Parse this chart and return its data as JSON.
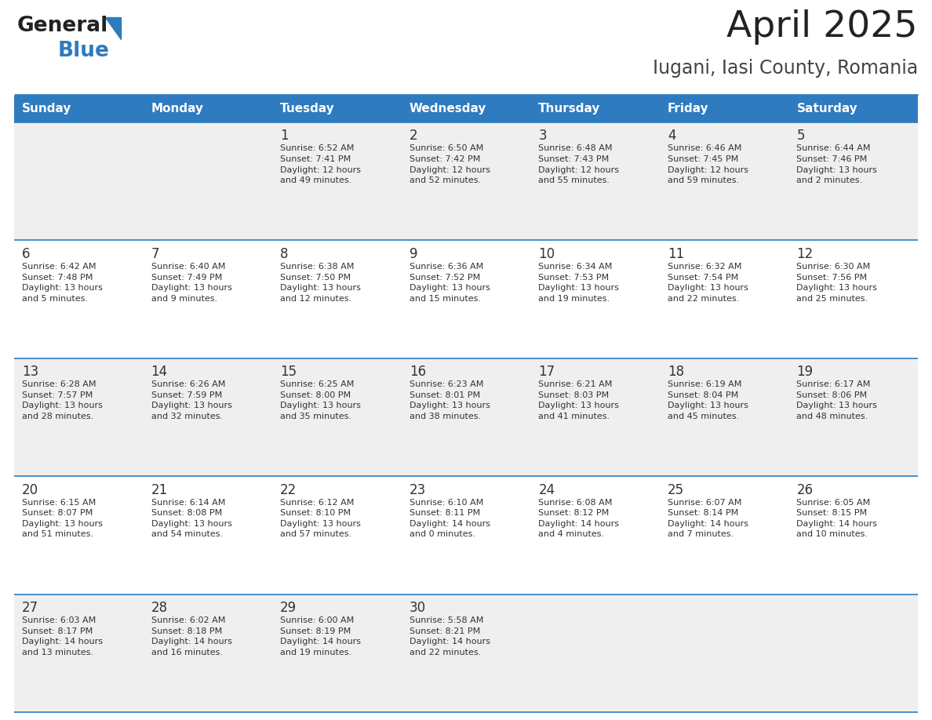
{
  "title": "April 2025",
  "subtitle": "Iugani, Iasi County, Romania",
  "days_of_week": [
    "Sunday",
    "Monday",
    "Tuesday",
    "Wednesday",
    "Thursday",
    "Friday",
    "Saturday"
  ],
  "header_bg": "#2E7BBF",
  "header_text_color": "#FFFFFF",
  "cell_bg_odd": "#EFEFEF",
  "cell_bg_even": "#FFFFFF",
  "border_color": "#2E7BBF",
  "text_color": "#333333",
  "title_color": "#222222",
  "subtitle_color": "#444444",
  "logo_text_color": "#222222",
  "logo_blue_color": "#2E7BBF",
  "weeks": [
    [
      {
        "day": "",
        "info": ""
      },
      {
        "day": "",
        "info": ""
      },
      {
        "day": "1",
        "info": "Sunrise: 6:52 AM\nSunset: 7:41 PM\nDaylight: 12 hours\nand 49 minutes."
      },
      {
        "day": "2",
        "info": "Sunrise: 6:50 AM\nSunset: 7:42 PM\nDaylight: 12 hours\nand 52 minutes."
      },
      {
        "day": "3",
        "info": "Sunrise: 6:48 AM\nSunset: 7:43 PM\nDaylight: 12 hours\nand 55 minutes."
      },
      {
        "day": "4",
        "info": "Sunrise: 6:46 AM\nSunset: 7:45 PM\nDaylight: 12 hours\nand 59 minutes."
      },
      {
        "day": "5",
        "info": "Sunrise: 6:44 AM\nSunset: 7:46 PM\nDaylight: 13 hours\nand 2 minutes."
      }
    ],
    [
      {
        "day": "6",
        "info": "Sunrise: 6:42 AM\nSunset: 7:48 PM\nDaylight: 13 hours\nand 5 minutes."
      },
      {
        "day": "7",
        "info": "Sunrise: 6:40 AM\nSunset: 7:49 PM\nDaylight: 13 hours\nand 9 minutes."
      },
      {
        "day": "8",
        "info": "Sunrise: 6:38 AM\nSunset: 7:50 PM\nDaylight: 13 hours\nand 12 minutes."
      },
      {
        "day": "9",
        "info": "Sunrise: 6:36 AM\nSunset: 7:52 PM\nDaylight: 13 hours\nand 15 minutes."
      },
      {
        "day": "10",
        "info": "Sunrise: 6:34 AM\nSunset: 7:53 PM\nDaylight: 13 hours\nand 19 minutes."
      },
      {
        "day": "11",
        "info": "Sunrise: 6:32 AM\nSunset: 7:54 PM\nDaylight: 13 hours\nand 22 minutes."
      },
      {
        "day": "12",
        "info": "Sunrise: 6:30 AM\nSunset: 7:56 PM\nDaylight: 13 hours\nand 25 minutes."
      }
    ],
    [
      {
        "day": "13",
        "info": "Sunrise: 6:28 AM\nSunset: 7:57 PM\nDaylight: 13 hours\nand 28 minutes."
      },
      {
        "day": "14",
        "info": "Sunrise: 6:26 AM\nSunset: 7:59 PM\nDaylight: 13 hours\nand 32 minutes."
      },
      {
        "day": "15",
        "info": "Sunrise: 6:25 AM\nSunset: 8:00 PM\nDaylight: 13 hours\nand 35 minutes."
      },
      {
        "day": "16",
        "info": "Sunrise: 6:23 AM\nSunset: 8:01 PM\nDaylight: 13 hours\nand 38 minutes."
      },
      {
        "day": "17",
        "info": "Sunrise: 6:21 AM\nSunset: 8:03 PM\nDaylight: 13 hours\nand 41 minutes."
      },
      {
        "day": "18",
        "info": "Sunrise: 6:19 AM\nSunset: 8:04 PM\nDaylight: 13 hours\nand 45 minutes."
      },
      {
        "day": "19",
        "info": "Sunrise: 6:17 AM\nSunset: 8:06 PM\nDaylight: 13 hours\nand 48 minutes."
      }
    ],
    [
      {
        "day": "20",
        "info": "Sunrise: 6:15 AM\nSunset: 8:07 PM\nDaylight: 13 hours\nand 51 minutes."
      },
      {
        "day": "21",
        "info": "Sunrise: 6:14 AM\nSunset: 8:08 PM\nDaylight: 13 hours\nand 54 minutes."
      },
      {
        "day": "22",
        "info": "Sunrise: 6:12 AM\nSunset: 8:10 PM\nDaylight: 13 hours\nand 57 minutes."
      },
      {
        "day": "23",
        "info": "Sunrise: 6:10 AM\nSunset: 8:11 PM\nDaylight: 14 hours\nand 0 minutes."
      },
      {
        "day": "24",
        "info": "Sunrise: 6:08 AM\nSunset: 8:12 PM\nDaylight: 14 hours\nand 4 minutes."
      },
      {
        "day": "25",
        "info": "Sunrise: 6:07 AM\nSunset: 8:14 PM\nDaylight: 14 hours\nand 7 minutes."
      },
      {
        "day": "26",
        "info": "Sunrise: 6:05 AM\nSunset: 8:15 PM\nDaylight: 14 hours\nand 10 minutes."
      }
    ],
    [
      {
        "day": "27",
        "info": "Sunrise: 6:03 AM\nSunset: 8:17 PM\nDaylight: 14 hours\nand 13 minutes."
      },
      {
        "day": "28",
        "info": "Sunrise: 6:02 AM\nSunset: 8:18 PM\nDaylight: 14 hours\nand 16 minutes."
      },
      {
        "day": "29",
        "info": "Sunrise: 6:00 AM\nSunset: 8:19 PM\nDaylight: 14 hours\nand 19 minutes."
      },
      {
        "day": "30",
        "info": "Sunrise: 5:58 AM\nSunset: 8:21 PM\nDaylight: 14 hours\nand 22 minutes."
      },
      {
        "day": "",
        "info": ""
      },
      {
        "day": "",
        "info": ""
      },
      {
        "day": "",
        "info": ""
      }
    ]
  ]
}
